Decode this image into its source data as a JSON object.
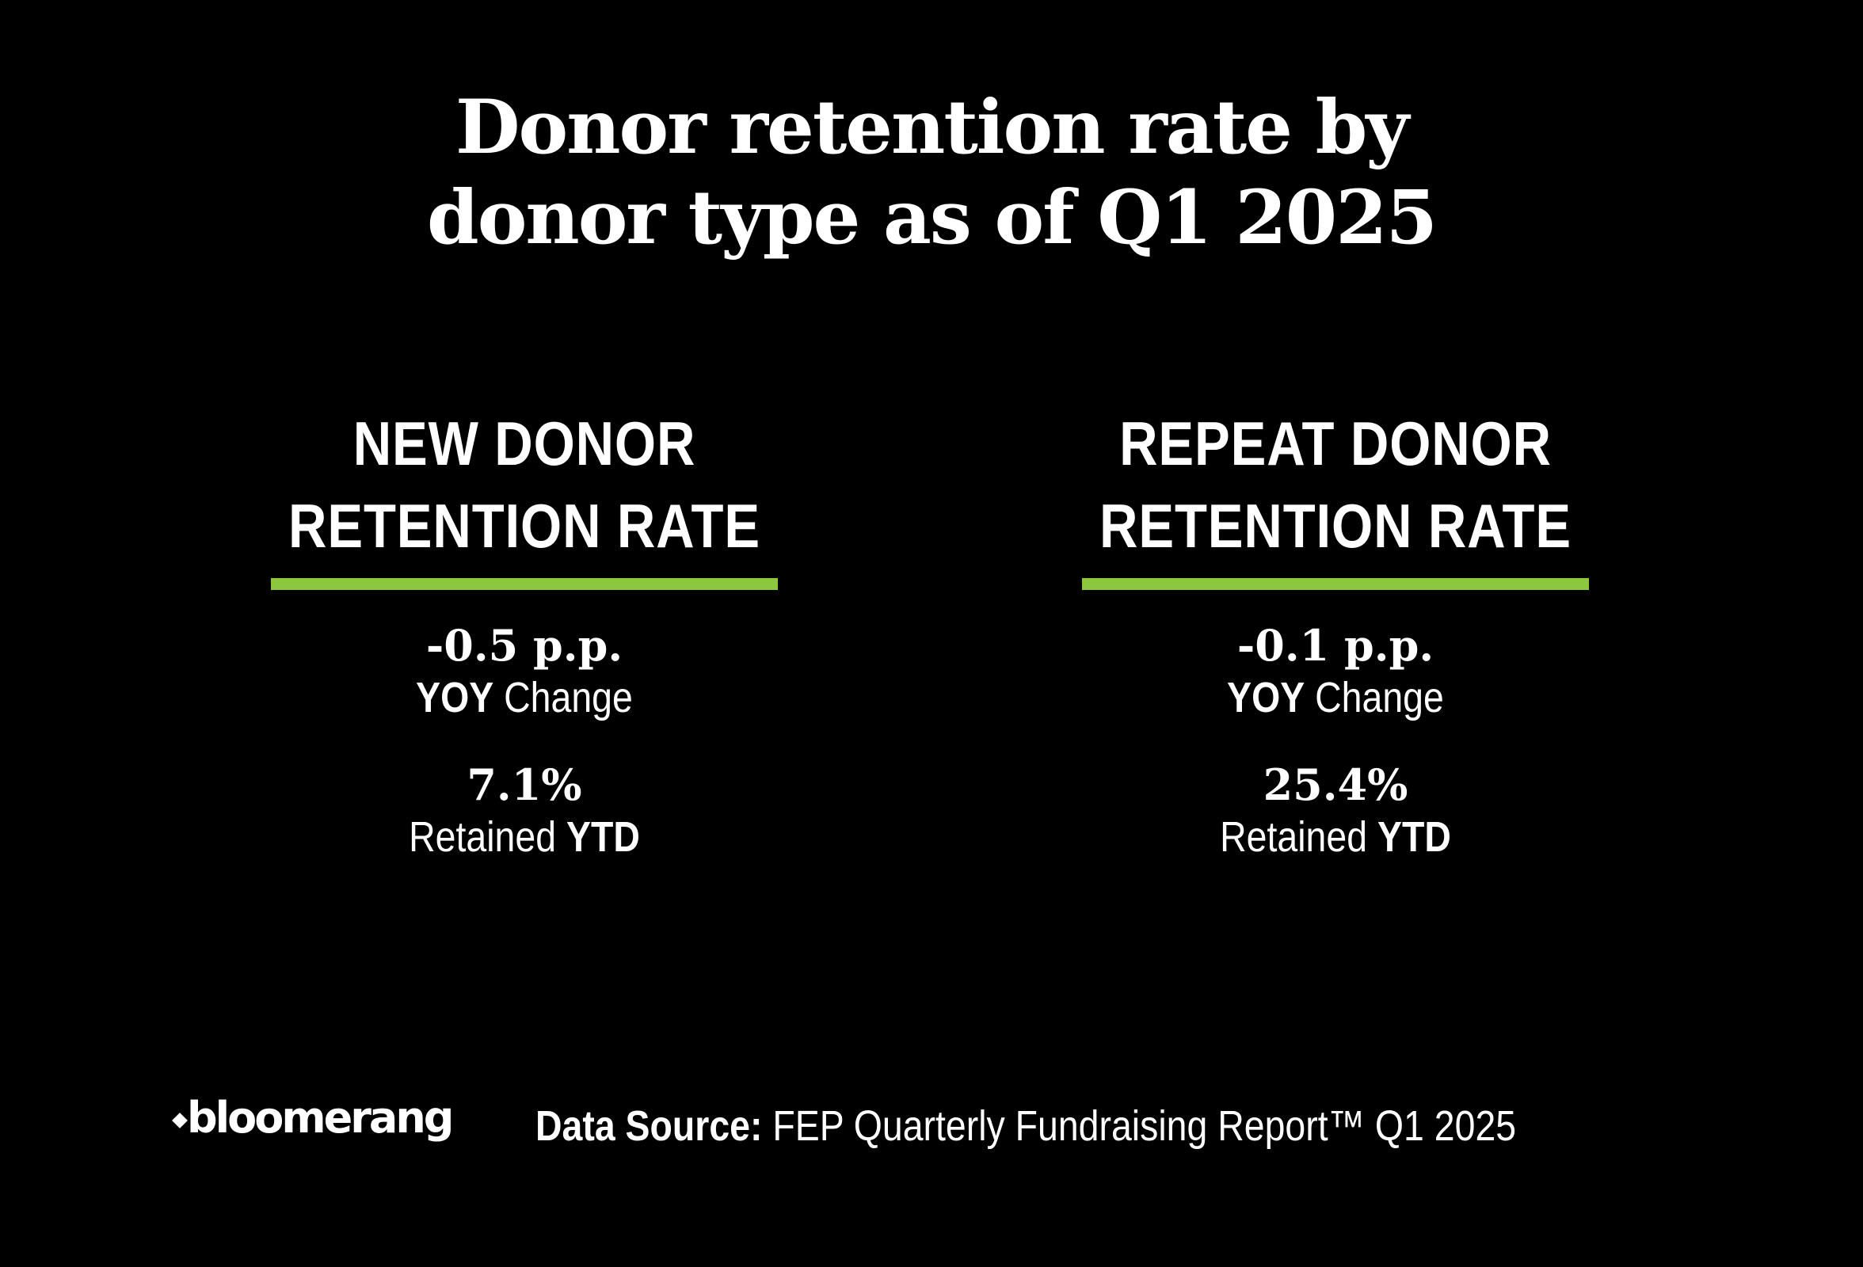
{
  "title": {
    "line1": "Donor retention rate by",
    "line2": "donor type as of Q1 2025"
  },
  "accent_color": "#8dc63f",
  "cards": [
    {
      "heading_line1": "NEW DONOR",
      "heading_line2": "RETENTION RATE",
      "yoy_value": "-0.5 p.p.",
      "yoy_label_bold": "YOY",
      "yoy_label_rest": "Change",
      "ytd_value": "7.1%",
      "ytd_label_rest": "Retained",
      "ytd_label_bold": "YTD"
    },
    {
      "heading_line1": "REPEAT DONOR",
      "heading_line2": "RETENTION RATE",
      "yoy_value": "-0.1 p.p.",
      "yoy_label_bold": "YOY",
      "yoy_label_rest": "Change",
      "ytd_value": "25.4%",
      "ytd_label_rest": "Retained",
      "ytd_label_bold": "YTD"
    }
  ],
  "footer": {
    "logo_text": "bloomerang",
    "source_label": "Data Source:",
    "source_text": "FEP Quarterly Fundraising Report™ Q1 2025"
  }
}
